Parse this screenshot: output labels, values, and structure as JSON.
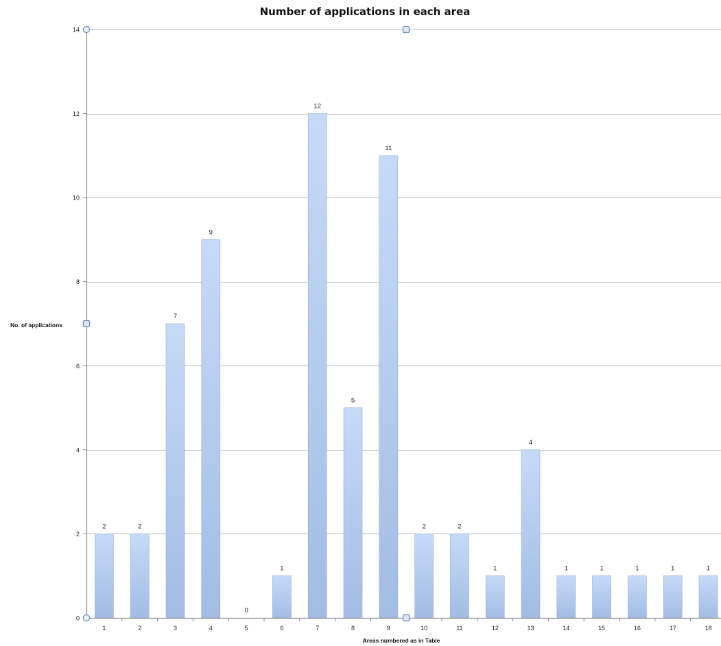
{
  "chart_data": {
    "type": "bar",
    "title": "Number of applications in each area",
    "xlabel": "Areas numbered as in Table",
    "ylabel": "No. of applications",
    "categories": [
      "1",
      "2",
      "3",
      "4",
      "5",
      "6",
      "7",
      "8",
      "9",
      "10",
      "11",
      "12",
      "13",
      "14",
      "15",
      "16",
      "17",
      "18"
    ],
    "values": [
      2,
      2,
      7,
      9,
      0,
      1,
      12,
      5,
      11,
      2,
      2,
      1,
      4,
      1,
      1,
      1,
      1,
      1
    ],
    "ylim": [
      0,
      14
    ],
    "yticks": [
      0,
      2,
      4,
      6,
      8,
      10,
      12,
      14
    ],
    "grid": true,
    "data_labels": true,
    "legend": "none",
    "colors": {
      "bar_top": "#c6daf8",
      "bar_bottom": "#a3bce4",
      "bar_edge": "#93acd6",
      "grid": "#b8b8b8",
      "axis": "#8a8a8a",
      "handle": "#6f8fb9"
    }
  }
}
